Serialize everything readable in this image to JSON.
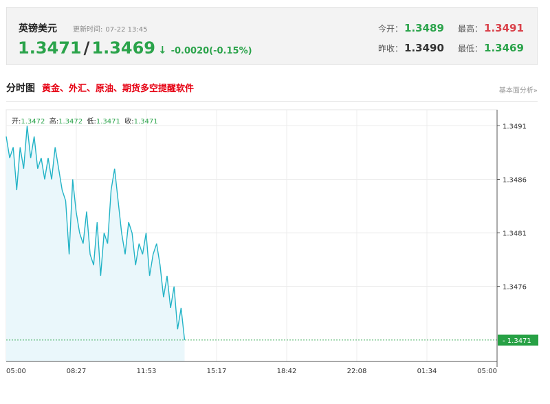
{
  "quote": {
    "name": "英镑美元",
    "update_label": "更新时间:",
    "update_time": "07-22 13:45",
    "bid": "1.3471",
    "ask": "1.3469",
    "separator": "/",
    "direction_arrow": "↓",
    "change": "-0.0020(-0.15%)",
    "open_label": "今开：",
    "open": "1.3489",
    "high_label": "最高：",
    "high": "1.3491",
    "prev_close_label": "昨收：",
    "prev_close": "1.3490",
    "low_label": "最低：",
    "low": "1.3469"
  },
  "section": {
    "title": "分时图",
    "promo": "黄金、外汇、原油、期货多空提醒软件",
    "link": "基本面分析»"
  },
  "ohlc": {
    "open_label": "开:",
    "open": "1.3472",
    "high_label": "高:",
    "high": "1.3472",
    "low_label": "低:",
    "low": "1.3471",
    "close_label": "收:",
    "close": "1.3471"
  },
  "colors": {
    "up": "#2aa34a",
    "down": "#d9414a",
    "line": "#22b3c6",
    "fill": "#eaf7fb",
    "current_tag": "#27a145"
  },
  "chart_data": {
    "type": "area",
    "x_ticks": [
      "05:00",
      "08:27",
      "11:53",
      "15:17",
      "18:42",
      "22:08",
      "01:34",
      "05:00"
    ],
    "y_ticks": [
      "1.3491",
      "1.3486",
      "1.3481",
      "1.3476"
    ],
    "ylim": [
      1.3469,
      1.34925
    ],
    "current_value": "1.3471",
    "grid": true,
    "x": [
      0,
      1,
      2,
      3,
      4,
      5,
      6,
      7,
      8,
      9,
      10,
      11,
      12,
      13,
      14,
      15,
      16,
      17,
      18,
      19,
      20,
      21,
      22,
      23,
      24,
      25,
      26,
      27,
      28,
      29,
      30,
      31,
      32,
      33,
      34,
      35,
      36,
      37,
      38,
      39,
      40,
      41,
      42,
      43,
      44,
      45,
      46,
      47,
      48,
      49,
      50,
      51
    ],
    "values": [
      1.349,
      1.3488,
      1.3489,
      1.3485,
      1.3489,
      1.3487,
      1.3491,
      1.3488,
      1.349,
      1.3487,
      1.3488,
      1.3486,
      1.3488,
      1.3486,
      1.3489,
      1.3487,
      1.3485,
      1.3484,
      1.3479,
      1.3486,
      1.3483,
      1.3481,
      1.348,
      1.3483,
      1.3479,
      1.3478,
      1.3482,
      1.3477,
      1.3481,
      1.348,
      1.3485,
      1.3487,
      1.3484,
      1.3481,
      1.3479,
      1.3482,
      1.3481,
      1.3478,
      1.348,
      1.3479,
      1.3481,
      1.3477,
      1.3479,
      1.348,
      1.3478,
      1.3475,
      1.3477,
      1.3474,
      1.3476,
      1.3472,
      1.3474,
      1.3471
    ]
  }
}
